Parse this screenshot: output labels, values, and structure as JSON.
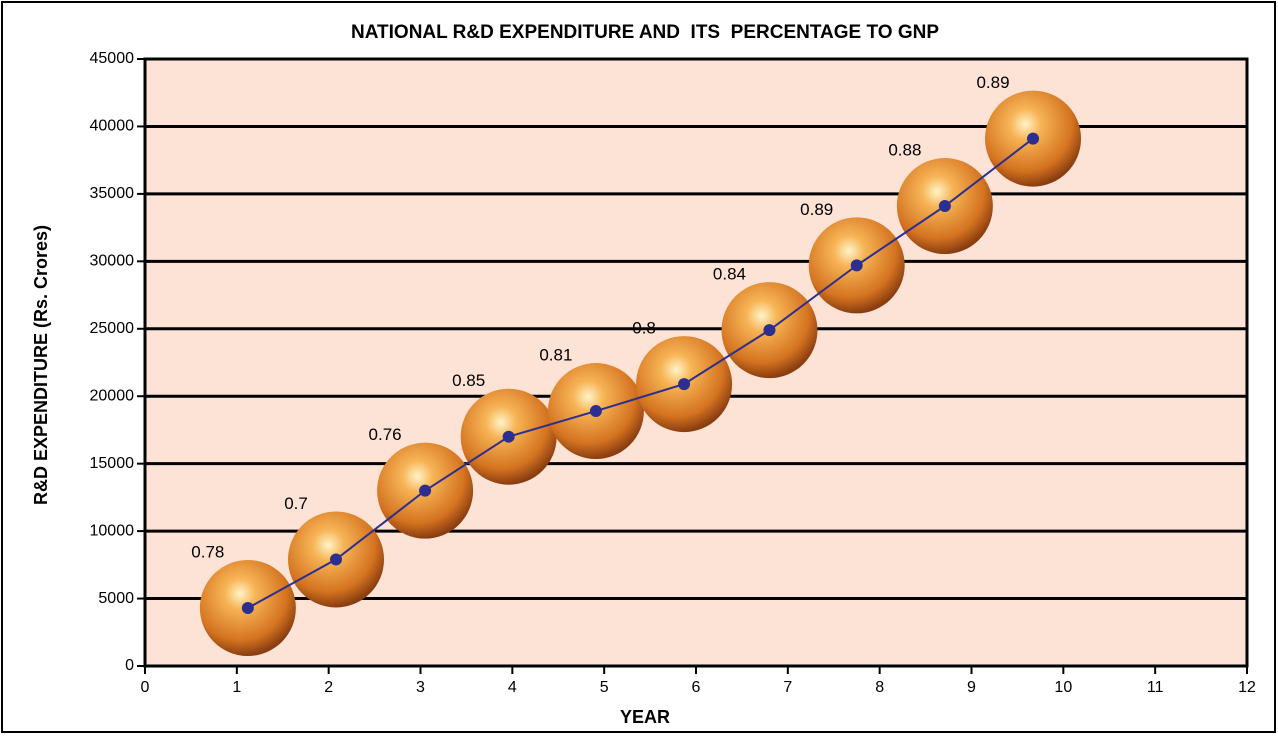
{
  "chart_data": {
    "type": "line",
    "title": "NATIONAL R&D EXPENDITURE AND  ITS  PERCENTAGE TO GNP",
    "x_label": "YEAR",
    "y_label": "R&D EXPENDITURE (Rs. Crores)",
    "x": [
      1.12,
      2.08,
      3.05,
      3.96,
      4.91,
      5.87,
      6.8,
      7.75,
      8.71,
      9.67
    ],
    "series": [
      {
        "color": "#2b2f8f",
        "bubble_color": "#e8892a",
        "values": [
          4300,
          7900,
          13000,
          17000,
          18900,
          20900,
          24900,
          29700,
          34100,
          39100
        ],
        "point_labels": [
          0.78,
          0.7,
          0.76,
          0.85,
          0.81,
          0.8,
          0.84,
          0.89,
          0.88,
          0.89
        ]
      }
    ],
    "xlim": [
      0,
      12
    ],
    "xticks": [
      0,
      1,
      2,
      3,
      4,
      5,
      6,
      7,
      8,
      9,
      10,
      11,
      12
    ],
    "ylim": [
      0,
      45000
    ],
    "yticks": [
      0,
      5000,
      10000,
      15000,
      20000,
      25000,
      30000,
      35000,
      40000,
      45000
    ],
    "grid": true,
    "plot_background": "#fde2d6"
  }
}
